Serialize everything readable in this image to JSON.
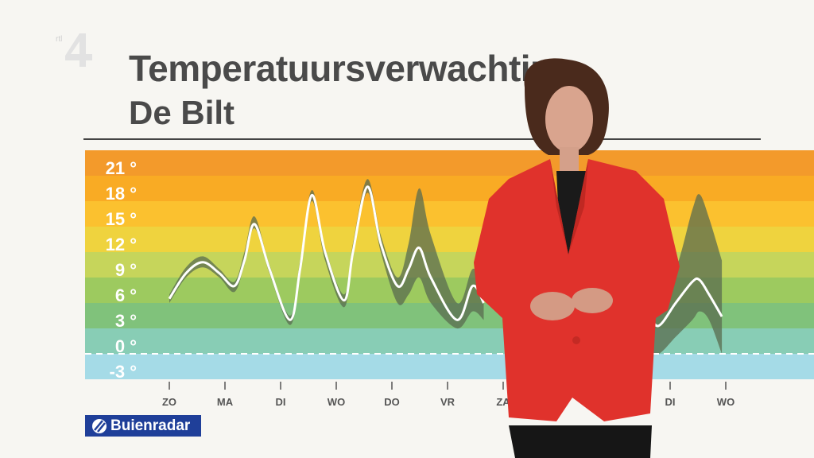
{
  "broadcast": {
    "channel_logo": "rtl 4"
  },
  "header": {
    "title": "Temperatuursverwachting",
    "subtitle": "De Bilt"
  },
  "brand": {
    "label": "Buienradar",
    "icon": "buienradar-logo-icon",
    "color": "#1f3f99"
  },
  "chart_data": {
    "type": "line",
    "title": "Temperatuursverwachting",
    "subtitle": "De Bilt",
    "categories": [
      "ZO",
      "MA",
      "DI",
      "WO",
      "DO",
      "VR",
      "ZA",
      "ZO",
      "MA",
      "DI",
      "WO"
    ],
    "y_ticks": [
      "21 °",
      "18 °",
      "15 °",
      "12 °",
      "9 °",
      "6 °",
      "3 °",
      "0 °",
      "-3 °"
    ],
    "y_tick_values": [
      21,
      18,
      15,
      12,
      9,
      6,
      3,
      0,
      -3
    ],
    "ylim": [
      -3,
      24
    ],
    "unit": "°C",
    "zero_line": "dashed",
    "bands": [
      {
        "from": 21,
        "to": 24,
        "color": "#f39a2b"
      },
      {
        "from": 18,
        "to": 21,
        "color": "#f9ab24"
      },
      {
        "from": 15,
        "to": 18,
        "color": "#fbc12f"
      },
      {
        "from": 12,
        "to": 15,
        "color": "#efd33e"
      },
      {
        "from": 9,
        "to": 12,
        "color": "#c6d55b"
      },
      {
        "from": 6,
        "to": 9,
        "color": "#9dca5f"
      },
      {
        "from": 3,
        "to": 6,
        "color": "#80c27b"
      },
      {
        "from": 0,
        "to": 3,
        "color": "#88cdb5"
      },
      {
        "from": -3,
        "to": 0,
        "color": "#a5dbe7"
      }
    ],
    "line_color": "#ffffff",
    "band_color": "#5a6b4f",
    "segments": [
      [
        {
          "x": 0.0,
          "t": 6.5,
          "lo": 6,
          "hi": 7
        },
        {
          "x": 0.3,
          "t": 9.5,
          "lo": 9,
          "hi": 10.2
        },
        {
          "x": 0.6,
          "t": 10.8,
          "lo": 10.2,
          "hi": 11.5
        },
        {
          "x": 0.9,
          "t": 9.5,
          "lo": 9,
          "hi": 10
        },
        {
          "x": 1.17,
          "t": 8.0,
          "lo": 7.3,
          "hi": 8.5
        },
        {
          "x": 1.35,
          "t": 11,
          "lo": 10.5,
          "hi": 12
        },
        {
          "x": 1.53,
          "t": 15.3,
          "lo": 14.8,
          "hi": 16.2
        },
        {
          "x": 1.8,
          "t": 10,
          "lo": 9.5,
          "hi": 10.5
        },
        {
          "x": 2.17,
          "t": 4.0,
          "lo": 3.4,
          "hi": 4.5
        },
        {
          "x": 2.35,
          "t": 10,
          "lo": 9.5,
          "hi": 11
        },
        {
          "x": 2.56,
          "t": 18.7,
          "lo": 18,
          "hi": 19.3
        },
        {
          "x": 2.8,
          "t": 12,
          "lo": 11,
          "hi": 12.5
        },
        {
          "x": 3.14,
          "t": 6.3,
          "lo": 5.5,
          "hi": 7
        },
        {
          "x": 3.3,
          "t": 12,
          "lo": 11.5,
          "hi": 13
        },
        {
          "x": 3.56,
          "t": 19.7,
          "lo": 19,
          "hi": 20.6
        },
        {
          "x": 3.8,
          "t": 13,
          "lo": 12,
          "hi": 14
        },
        {
          "x": 4.1,
          "t": 8,
          "lo": 6,
          "hi": 9
        },
        {
          "x": 4.3,
          "t": 10,
          "lo": 7,
          "hi": 13
        },
        {
          "x": 4.49,
          "t": 12.5,
          "lo": 9,
          "hi": 19.5
        },
        {
          "x": 4.7,
          "t": 9,
          "lo": 6,
          "hi": 14
        },
        {
          "x": 5.17,
          "t": 4,
          "lo": 3,
          "hi": 6
        },
        {
          "x": 5.45,
          "t": 8,
          "lo": 5,
          "hi": 10
        },
        {
          "x": 5.65,
          "t": 6,
          "lo": 4,
          "hi": 8
        }
      ],
      [
        {
          "x": 8.3,
          "t": 8,
          "lo": 4,
          "hi": 12
        },
        {
          "x": 8.6,
          "t": 5,
          "lo": 1,
          "hi": 10
        },
        {
          "x": 8.79,
          "t": 3.3,
          "lo": 0,
          "hi": 8
        },
        {
          "x": 9.1,
          "t": 6,
          "lo": 2,
          "hi": 10
        },
        {
          "x": 9.4,
          "t": 8.5,
          "lo": 4,
          "hi": 17
        },
        {
          "x": 9.53,
          "t": 8.7,
          "lo": 5,
          "hi": 18.8
        },
        {
          "x": 9.7,
          "t": 7,
          "lo": 4,
          "hi": 16
        },
        {
          "x": 9.93,
          "t": 4.4,
          "lo": 0,
          "hi": 11
        }
      ]
    ]
  }
}
